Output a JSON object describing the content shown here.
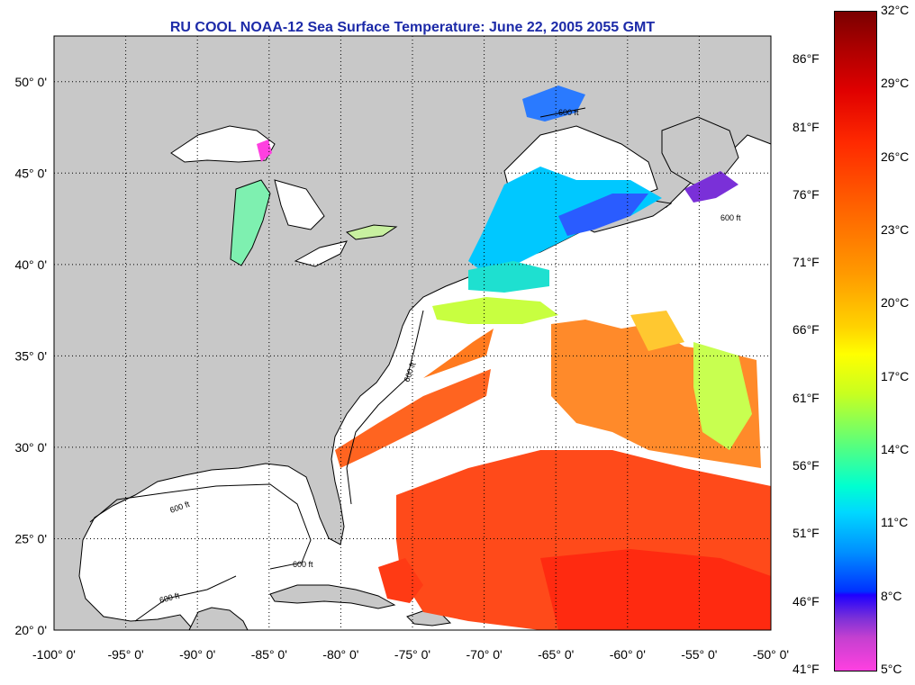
{
  "title": "RU COOL  NOAA-12  Sea Surface Temperature:  June 22, 2005 2055 GMT",
  "map": {
    "lon_range": [
      -100,
      -50
    ],
    "lat_range": [
      20,
      52.5
    ],
    "grid": true,
    "lon_ticks": [
      "-100° 0'",
      "-95° 0'",
      "-90° 0'",
      "-85° 0'",
      "-80° 0'",
      "-75° 0'",
      "-70° 0'",
      "-65° 0'",
      "-60° 0'",
      "-55° 0'",
      "-50° 0'"
    ],
    "lat_ticks": [
      "20° 0'",
      "25° 0'",
      "30° 0'",
      "35° 0'",
      "40° 0'",
      "45° 0'",
      "50° 0'"
    ],
    "contour_label": "600 ft",
    "colors": {
      "land": "#c8c8c8",
      "cloud_or_shelf": "#ffffff",
      "coastline": "#000000"
    }
  },
  "colorbar": {
    "celsius_labels": [
      "32°C",
      "29°C",
      "26°C",
      "23°C",
      "20°C",
      "17°C",
      "14°C",
      "11°C",
      "8°C",
      "5°C"
    ],
    "fahrenheit_labels": [
      "86°F",
      "81°F",
      "76°F",
      "71°F",
      "66°F",
      "61°F",
      "56°F",
      "51°F",
      "46°F",
      "41°F"
    ],
    "range_celsius": [
      5,
      32
    ]
  }
}
